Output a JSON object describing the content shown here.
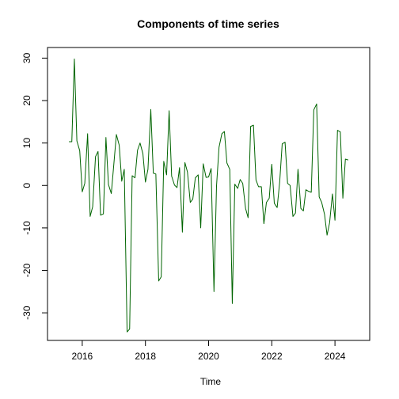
{
  "chart_data": {
    "type": "line",
    "title": "Components of time series",
    "xlabel": "Time",
    "ylabel": "",
    "xlim": [
      2014.9,
      2025.1
    ],
    "ylim": [
      -36.5,
      32.5
    ],
    "x_ticks": [
      2016,
      2018,
      2020,
      2022,
      2024
    ],
    "x_tick_labels": [
      "2016",
      "2018",
      "2020",
      "2022",
      "2024"
    ],
    "y_ticks": [
      30,
      20,
      10,
      0,
      -10,
      -20,
      -30
    ],
    "y_tick_labels": [
      "30",
      "20",
      "10",
      "0",
      "-10",
      "-20",
      "-30"
    ],
    "grid": false,
    "legend": "none",
    "series": [
      {
        "color": "#006400",
        "x": [
          2015.58,
          2015.67,
          2015.75,
          2015.83,
          2015.92,
          2016.0,
          2016.08,
          2016.17,
          2016.25,
          2016.33,
          2016.42,
          2016.5,
          2016.58,
          2016.67,
          2016.75,
          2016.83,
          2016.92,
          2017.0,
          2017.08,
          2017.17,
          2017.25,
          2017.33,
          2017.42,
          2017.5,
          2017.58,
          2017.67,
          2017.75,
          2017.83,
          2017.92,
          2018.0,
          2018.08,
          2018.17,
          2018.25,
          2018.33,
          2018.42,
          2018.5,
          2018.58,
          2018.67,
          2018.75,
          2018.83,
          2018.92,
          2019.0,
          2019.08,
          2019.17,
          2019.25,
          2019.33,
          2019.42,
          2019.5,
          2019.58,
          2019.67,
          2019.75,
          2019.83,
          2019.92,
          2020.0,
          2020.08,
          2020.17,
          2020.25,
          2020.33,
          2020.42,
          2020.5,
          2020.58,
          2020.67,
          2020.75,
          2020.83,
          2020.92,
          2021.0,
          2021.08,
          2021.17,
          2021.25,
          2021.33,
          2021.42,
          2021.5,
          2021.58,
          2021.67,
          2021.75,
          2021.83,
          2021.92,
          2022.0,
          2022.08,
          2022.17,
          2022.25,
          2022.33,
          2022.42,
          2022.5,
          2022.58,
          2022.67,
          2022.75,
          2022.83,
          2022.92,
          2023.0,
          2023.08,
          2023.17,
          2023.25,
          2023.33,
          2023.42,
          2023.5,
          2023.58,
          2023.67,
          2023.75,
          2023.83,
          2023.92,
          2024.0,
          2024.08,
          2024.17,
          2024.25,
          2024.33,
          2024.42
        ],
        "y": [
          10.3,
          10.3,
          29.8,
          10.5,
          8.2,
          -1.5,
          0.5,
          12.2,
          -7.3,
          -5.0,
          6.8,
          8.0,
          -7.0,
          -6.7,
          11.3,
          0.2,
          -1.9,
          5.0,
          12.0,
          9.5,
          1.0,
          3.8,
          -34.5,
          -33.8,
          2.3,
          1.8,
          8.3,
          10.0,
          7.5,
          0.8,
          3.8,
          17.9,
          2.9,
          2.7,
          -22.5,
          -21.5,
          5.7,
          2.5,
          17.6,
          2.2,
          0.1,
          -0.5,
          4.2,
          -11.0,
          5.4,
          3.2,
          -4.0,
          -3.2,
          1.8,
          2.5,
          -10.0,
          5.1,
          1.9,
          2.0,
          4.0,
          -25.0,
          -0.2,
          9.0,
          12.2,
          12.7,
          5.3,
          3.8,
          -27.8,
          0.3,
          -0.7,
          1.4,
          0.5,
          -5.4,
          -7.6,
          13.9,
          14.2,
          1.3,
          -0.3,
          -0.3,
          -9.0,
          -4.0,
          -3.0,
          5.0,
          -4.2,
          -5.2,
          0.8,
          9.8,
          10.2,
          0.5,
          0.0,
          -7.3,
          -6.5,
          3.8,
          -5.4,
          -6.0,
          -1.0,
          -1.4,
          -1.6,
          17.8,
          19.2,
          -2.7,
          -4.0,
          -6.8,
          -11.7,
          -8.8,
          -2.0,
          -8.2,
          13.0,
          12.6,
          -3.0,
          6.2,
          6.0
        ]
      }
    ]
  }
}
